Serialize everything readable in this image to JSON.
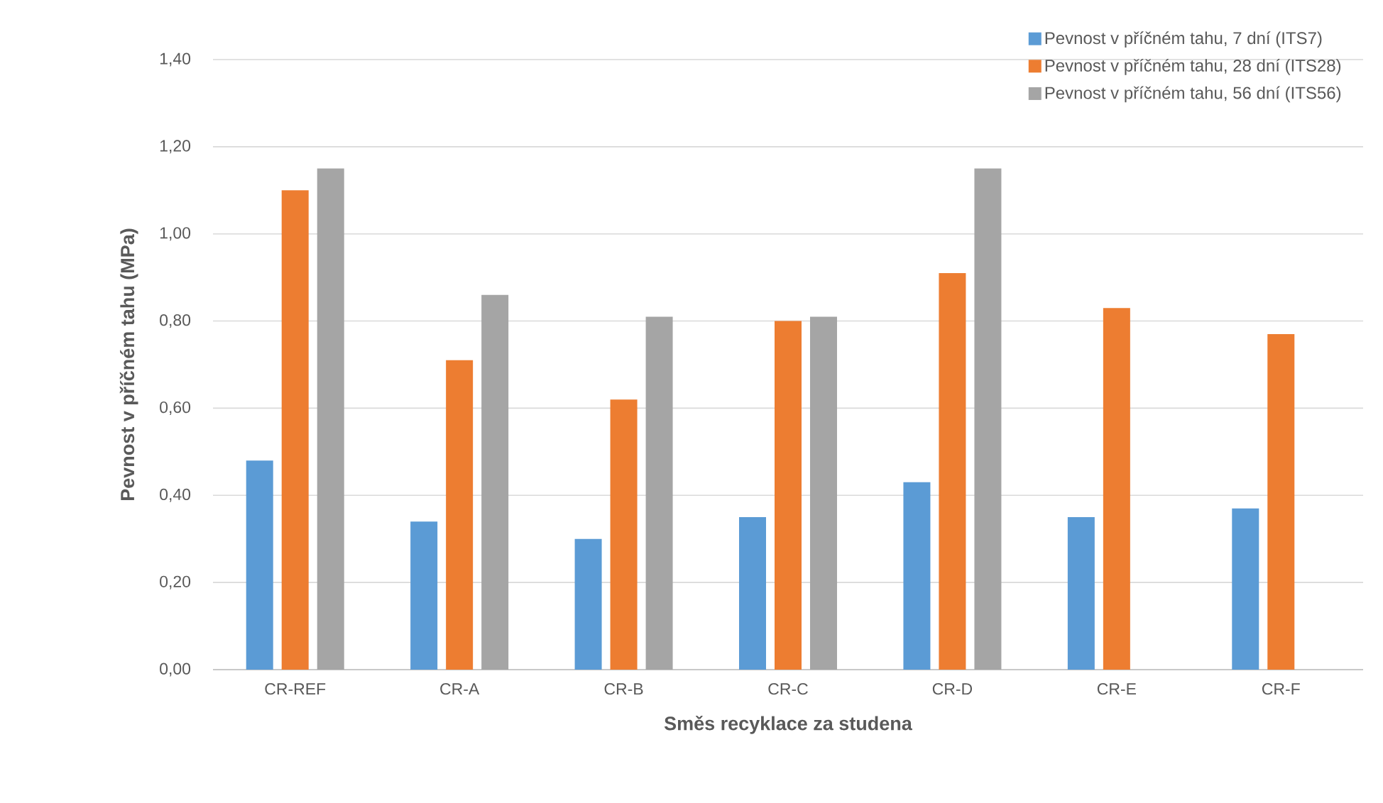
{
  "chart_data": {
    "type": "bar",
    "xlabel": "Směs recyklace za studena",
    "ylabel": "Pevnost v příčném tahu (MPa)",
    "categories": [
      "CR-REF",
      "CR-A",
      "CR-B",
      "CR-C",
      "CR-D",
      "CR-E",
      "CR-F"
    ],
    "series": [
      {
        "name": "Pevnost v příčném tahu, 7 dní (ITS7)",
        "color": "#5b9bd5",
        "values": [
          0.48,
          0.34,
          0.3,
          0.35,
          0.43,
          0.35,
          0.37
        ]
      },
      {
        "name": "Pevnost v příčném tahu, 28 dní (ITS28)",
        "color": "#ed7d31",
        "values": [
          1.1,
          0.71,
          0.62,
          0.8,
          0.91,
          0.83,
          0.77
        ]
      },
      {
        "name": "Pevnost v příčném tahu, 56 dní (ITS56)",
        "color": "#a5a5a5",
        "values": [
          1.15,
          0.86,
          0.81,
          0.81,
          1.15,
          null,
          null
        ]
      }
    ],
    "ylim": [
      0,
      1.4
    ],
    "yticks": [
      {
        "value": 0,
        "label": "0,00"
      },
      {
        "value": 0.2,
        "label": "0,20"
      },
      {
        "value": 0.4,
        "label": "0,40"
      },
      {
        "value": 0.6,
        "label": "0,60"
      },
      {
        "value": 0.8,
        "label": "0,80"
      },
      {
        "value": 1.0,
        "label": "1,00"
      },
      {
        "value": 1.2,
        "label": "1,20"
      },
      {
        "value": 1.4,
        "label": "1,40"
      }
    ],
    "grid": "y",
    "legend": "top right"
  }
}
